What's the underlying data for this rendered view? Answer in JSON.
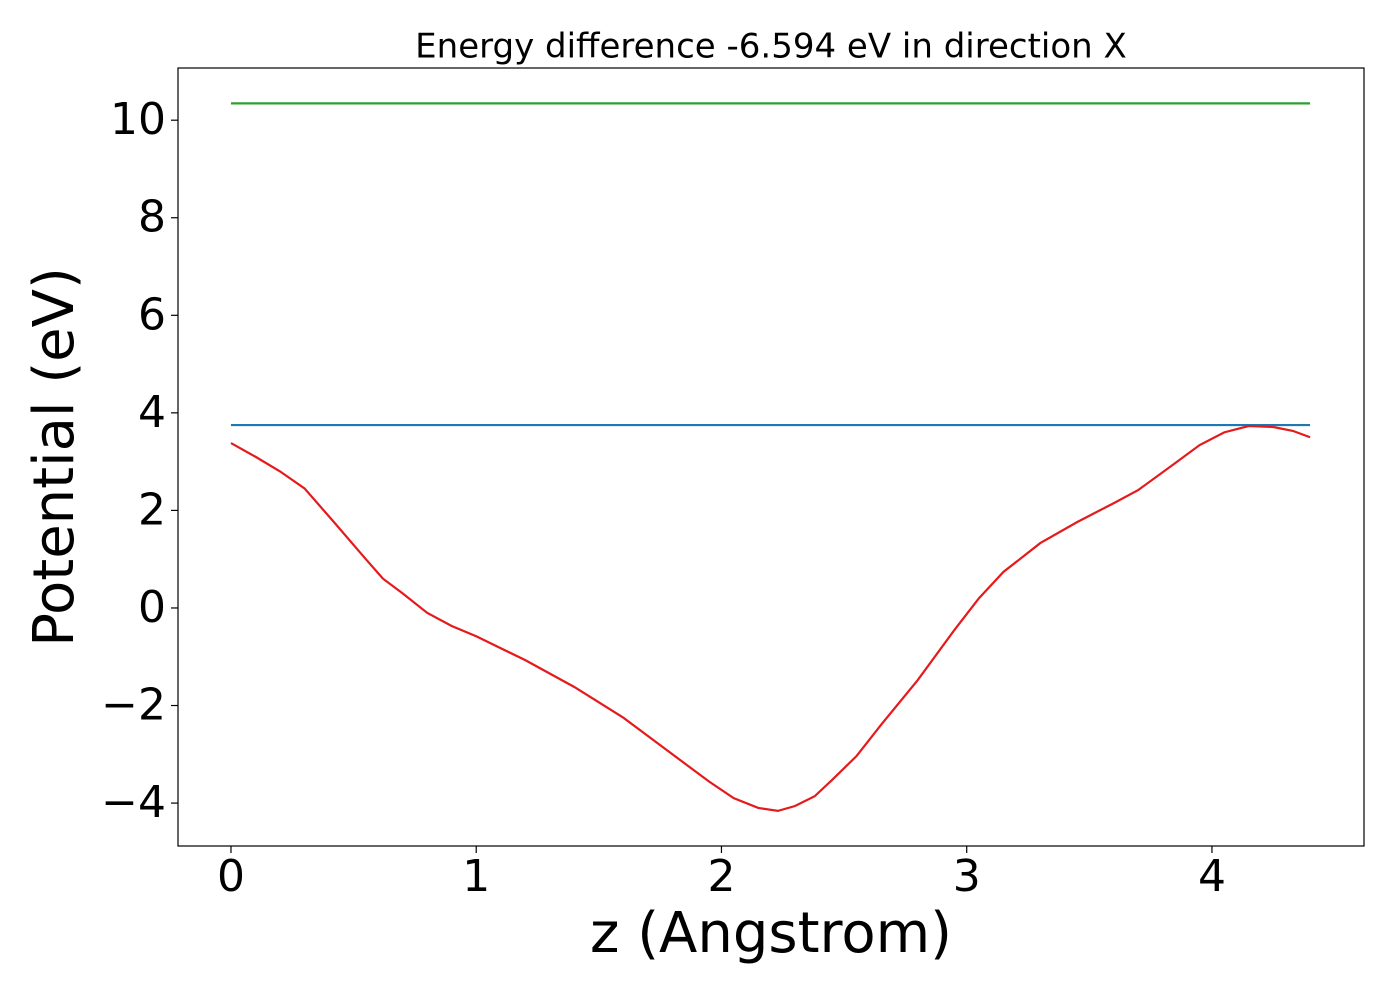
{
  "chart_data": {
    "type": "line",
    "title": "Energy difference -6.594 eV in direction X",
    "xlabel": "z (Angstrom)",
    "ylabel": "Potential (eV)",
    "xlim": [
      -0.216,
      4.62
    ],
    "ylim": [
      -4.88,
      11.07
    ],
    "xticks": [
      0,
      1,
      2,
      3,
      4
    ],
    "yticks": [
      {
        "value": -4,
        "label": "−4"
      },
      {
        "value": -2,
        "label": "−2"
      },
      0,
      2,
      4,
      6,
      8,
      10
    ],
    "grid": false,
    "series": [
      {
        "color": "#2ca02c",
        "x": [
          0,
          4.4
        ],
        "values": [
          10.344,
          10.344
        ]
      },
      {
        "color": "#1f77b4",
        "x": [
          0,
          4.4
        ],
        "values": [
          3.75,
          3.75
        ]
      },
      {
        "color": "#e41a1c",
        "x": [
          0,
          0.1,
          0.2,
          0.3,
          0.42,
          0.55,
          0.62,
          0.7,
          0.8,
          0.9,
          1.0,
          1.2,
          1.4,
          1.6,
          1.8,
          1.95,
          2.05,
          2.15,
          2.23,
          2.3,
          2.38,
          2.45,
          2.55,
          2.65,
          2.8,
          2.95,
          3.05,
          3.15,
          3.3,
          3.45,
          3.6,
          3.7,
          3.85,
          3.95,
          4.05,
          4.15,
          4.25,
          4.33,
          4.4
        ],
        "values": [
          3.38,
          3.1,
          2.8,
          2.45,
          1.76,
          1.0,
          0.6,
          0.3,
          -0.1,
          -0.37,
          -0.58,
          -1.07,
          -1.62,
          -2.25,
          -3.0,
          -3.56,
          -3.9,
          -4.1,
          -4.16,
          -4.06,
          -3.86,
          -3.53,
          -3.04,
          -2.4,
          -1.48,
          -0.45,
          0.2,
          0.74,
          1.33,
          1.76,
          2.15,
          2.42,
          2.97,
          3.34,
          3.6,
          3.73,
          3.71,
          3.63,
          3.5
        ]
      }
    ]
  }
}
